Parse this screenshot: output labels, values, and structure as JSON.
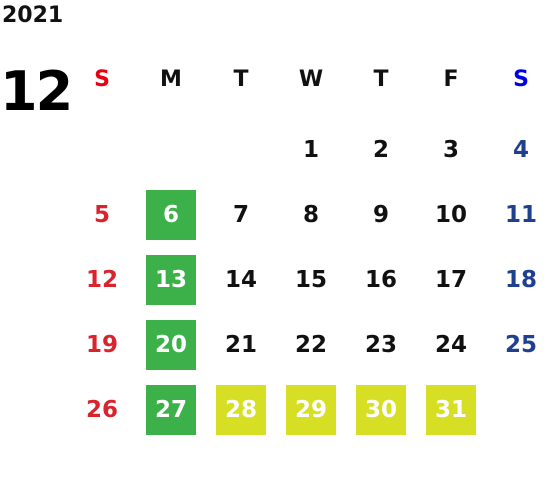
{
  "header": {
    "year": "2021",
    "month": "12"
  },
  "weekdays": [
    {
      "label": "S",
      "color": "#e60012"
    },
    {
      "label": "M",
      "color": "#111111"
    },
    {
      "label": "T",
      "color": "#111111"
    },
    {
      "label": "W",
      "color": "#111111"
    },
    {
      "label": "T",
      "color": "#111111"
    },
    {
      "label": "F",
      "color": "#111111"
    },
    {
      "label": "S",
      "color": "#0000e6"
    }
  ],
  "colors": {
    "sunday": "#d9232d",
    "saturday": "#1f3f8f",
    "weekday": "#111111",
    "holiday_green": "#3cb14a",
    "holiday_lime": "#d6df23"
  },
  "weeks": [
    [
      null,
      null,
      null,
      {
        "day": "1"
      },
      {
        "day": "2"
      },
      {
        "day": "3"
      },
      {
        "day": "4"
      }
    ],
    [
      {
        "day": "5"
      },
      {
        "day": "6",
        "highlight": "green"
      },
      {
        "day": "7"
      },
      {
        "day": "8"
      },
      {
        "day": "9"
      },
      {
        "day": "10"
      },
      {
        "day": "11"
      }
    ],
    [
      {
        "day": "12"
      },
      {
        "day": "13",
        "highlight": "green"
      },
      {
        "day": "14"
      },
      {
        "day": "15"
      },
      {
        "day": "16"
      },
      {
        "day": "17"
      },
      {
        "day": "18"
      }
    ],
    [
      {
        "day": "19"
      },
      {
        "day": "20",
        "highlight": "green"
      },
      {
        "day": "21"
      },
      {
        "day": "22"
      },
      {
        "day": "23"
      },
      {
        "day": "24"
      },
      {
        "day": "25"
      }
    ],
    [
      {
        "day": "26"
      },
      {
        "day": "27",
        "highlight": "green"
      },
      {
        "day": "28",
        "highlight": "lime"
      },
      {
        "day": "29",
        "highlight": "lime"
      },
      {
        "day": "30",
        "highlight": "lime"
      },
      {
        "day": "31",
        "highlight": "lime"
      },
      null
    ]
  ]
}
